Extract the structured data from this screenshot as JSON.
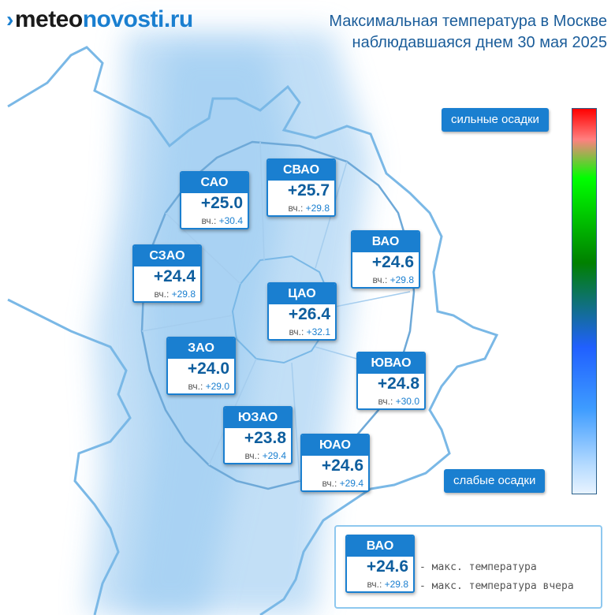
{
  "header": {
    "logo_part1": "meteo",
    "logo_part2": "novosti.ru",
    "title_line1": "Максимальная температура в Москве",
    "title_line2": "наблюдавшаяся днем 30 мая 2025"
  },
  "yest_prefix": "вч.:",
  "districts": [
    {
      "name": "САО",
      "temp": "+25.0",
      "yest": "+30.4"
    },
    {
      "name": "СВАО",
      "temp": "+25.7",
      "yest": "+29.8"
    },
    {
      "name": "ВАО",
      "temp": "+24.6",
      "yest": "+29.8"
    },
    {
      "name": "СЗАО",
      "temp": "+24.4",
      "yest": "+29.8"
    },
    {
      "name": "ЦАО",
      "temp": "+26.4",
      "yest": "+32.1"
    },
    {
      "name": "ЗАО",
      "temp": "+24.0",
      "yest": "+29.0"
    },
    {
      "name": "ЮВАО",
      "temp": "+24.8",
      "yest": "+30.0"
    },
    {
      "name": "ЮЗАО",
      "temp": "+23.8",
      "yest": "+29.4"
    },
    {
      "name": "ЮАО",
      "temp": "+24.6",
      "yest": "+29.4"
    }
  ],
  "scale": {
    "top_label": "сильные осадки",
    "bottom_label": "слабые осадки",
    "colors": [
      "#ff0000",
      "#00ff00",
      "#2060ff",
      "#e8f3ff"
    ]
  },
  "legend": {
    "name": "ВАО",
    "temp": "+24.6",
    "yest": "+29.8",
    "line1": "- макс. температура",
    "line2": "- макс. температура вчера"
  }
}
